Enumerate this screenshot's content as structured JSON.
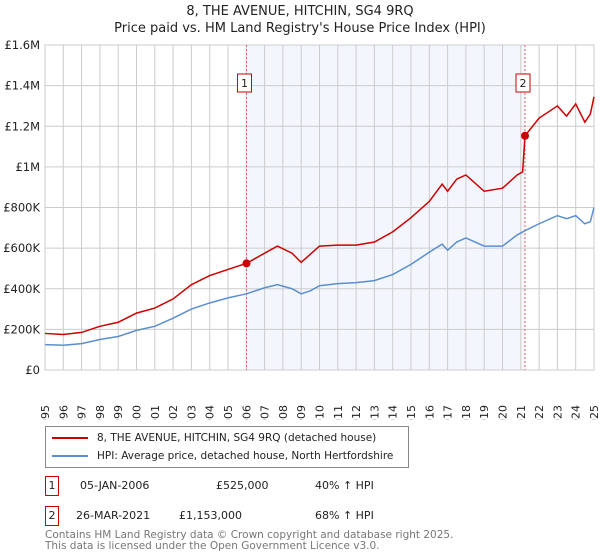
{
  "chart_data": {
    "type": "line",
    "title": "8, THE AVENUE, HITCHIN, SG4 9RQ",
    "subtitle": "Price paid vs. HM Land Registry's House Price Index (HPI)",
    "xlim": [
      1995,
      2025
    ],
    "ylim": [
      0,
      1600000
    ],
    "x_ticks": [
      "1995",
      "1996",
      "1997",
      "1998",
      "1999",
      "2000",
      "2001",
      "2002",
      "2003",
      "2004",
      "2005",
      "2006",
      "2007",
      "2008",
      "2009",
      "2010",
      "2011",
      "2012",
      "2013",
      "2014",
      "2015",
      "2016",
      "2017",
      "2018",
      "2019",
      "2020",
      "2021",
      "2022",
      "2023",
      "2024",
      "2025"
    ],
    "y_ticks": [
      {
        "v": 0,
        "label": "£0"
      },
      {
        "v": 200000,
        "label": "£200K"
      },
      {
        "v": 400000,
        "label": "£400K"
      },
      {
        "v": 600000,
        "label": "£600K"
      },
      {
        "v": 800000,
        "label": "£800K"
      },
      {
        "v": 1000000,
        "label": "£1M"
      },
      {
        "v": 1200000,
        "label": "£1.2M"
      },
      {
        "v": 1400000,
        "label": "£1.4M"
      },
      {
        "v": 1600000,
        "label": "£1.6M"
      }
    ],
    "grid": true,
    "shaded_range": [
      2006.01,
      2021.23
    ],
    "series": [
      {
        "name": "8, THE AVENUE, HITCHIN, SG4 9RQ (detached house)",
        "color": "#cc0000",
        "x": [
          1995,
          1996,
          1997,
          1998,
          1999,
          2000,
          2001,
          2002,
          2003,
          2004,
          2005,
          2006.01,
          2007,
          2007.7,
          2008.5,
          2009,
          2009.5,
          2010,
          2011,
          2012,
          2013,
          2014,
          2015,
          2016,
          2016.7,
          2017,
          2017.5,
          2018,
          2019,
          2020,
          2020.8,
          2021.1,
          2021.23,
          2022,
          2023,
          2023.5,
          2024,
          2024.5,
          2024.8,
          2025
        ],
        "y": [
          180000,
          175000,
          185000,
          215000,
          235000,
          280000,
          305000,
          350000,
          420000,
          465000,
          495000,
          525000,
          575000,
          610000,
          575000,
          530000,
          570000,
          610000,
          615000,
          615000,
          630000,
          680000,
          750000,
          830000,
          915000,
          880000,
          940000,
          960000,
          880000,
          895000,
          960000,
          975000,
          1153000,
          1240000,
          1300000,
          1250000,
          1310000,
          1220000,
          1260000,
          1345000
        ]
      },
      {
        "name": "HPI: Average price, detached house, North Hertfordshire",
        "color": "#5b8fd0",
        "x": [
          1995,
          1996,
          1997,
          1998,
          1999,
          2000,
          2001,
          2002,
          2003,
          2004,
          2005,
          2006.01,
          2007,
          2007.7,
          2008.5,
          2009,
          2009.5,
          2010,
          2011,
          2012,
          2013,
          2014,
          2015,
          2016,
          2016.7,
          2017,
          2017.5,
          2018,
          2019,
          2020,
          2020.8,
          2021.23,
          2022,
          2023,
          2023.5,
          2024,
          2024.5,
          2024.8,
          2025
        ],
        "y": [
          125000,
          122000,
          130000,
          150000,
          165000,
          195000,
          215000,
          255000,
          300000,
          330000,
          355000,
          375000,
          405000,
          420000,
          400000,
          375000,
          390000,
          415000,
          425000,
          430000,
          440000,
          470000,
          520000,
          580000,
          620000,
          590000,
          630000,
          650000,
          610000,
          610000,
          665000,
          686000,
          720000,
          760000,
          745000,
          760000,
          720000,
          730000,
          800000
        ]
      }
    ],
    "annotations": [
      {
        "label": "1",
        "x": 2006.01,
        "y": 525000
      },
      {
        "label": "2",
        "x": 2021.23,
        "y": 1153000
      }
    ]
  },
  "legend": {
    "items": [
      "8, THE AVENUE, HITCHIN, SG4 9RQ (detached house)",
      "HPI: Average price, detached house, North Hertfordshire"
    ]
  },
  "transactions": [
    {
      "num": "1",
      "date": "05-JAN-2006",
      "price": "£525,000",
      "hpi": "40% ↑ HPI"
    },
    {
      "num": "2",
      "date": "26-MAR-2021",
      "price": "£1,153,000",
      "hpi": "68% ↑ HPI"
    }
  ],
  "footer": {
    "line1": "Contains HM Land Registry data © Crown copyright and database right 2025.",
    "line2": "This data is licensed under the Open Government Licence v3.0."
  }
}
